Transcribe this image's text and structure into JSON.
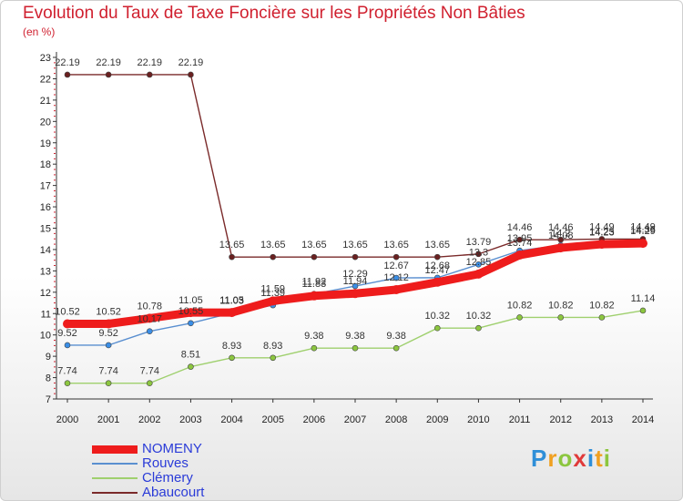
{
  "title": "Evolution du Taux de Taxe Foncière sur les Propriétés Non Bâties",
  "unit_label": "(en %)",
  "brand": {
    "letters": [
      "P",
      "r",
      "o",
      "x",
      "i",
      "t",
      "i"
    ],
    "colors": [
      "#2f8fd8",
      "#f0a020",
      "#8cc63f",
      "#e03a3a",
      "#2f8fd8",
      "#f0a020",
      "#8cc63f"
    ]
  },
  "chart_data": {
    "type": "line",
    "title": "Evolution du Taux de Taxe Foncière sur les Propriétés Non Bâties",
    "ylabel": "(en %)",
    "xlabel": "",
    "x": [
      "2000",
      "2001",
      "2002",
      "2003",
      "2004",
      "2005",
      "2006",
      "2007",
      "2008",
      "2009",
      "2010",
      "2011",
      "2012",
      "2013",
      "2014"
    ],
    "y_ticks": [
      "7",
      "8",
      "9",
      "10",
      "11",
      "12",
      "13",
      "14",
      "15",
      "16",
      "17",
      "18",
      "19",
      "20",
      "21",
      "22",
      "23"
    ],
    "ylim": [
      7,
      23
    ],
    "grid": false,
    "legend_position": "bottom-left",
    "series": [
      {
        "name": "NOMENY",
        "color": "#ee1c1c",
        "marker": "#ee1c1c",
        "values": [
          10.52,
          10.52,
          10.78,
          11.05,
          11.05,
          11.59,
          11.83,
          11.94,
          12.12,
          12.47,
          12.85,
          13.74,
          14.08,
          14.25,
          14.29
        ]
      },
      {
        "name": "Rouves",
        "color": "#5a8fd0",
        "marker": "#3a8ee6",
        "values": [
          9.52,
          9.52,
          10.17,
          10.55,
          11.03,
          11.39,
          11.92,
          12.29,
          12.67,
          12.68,
          13.3,
          13.95,
          14.2,
          14.23,
          14.36
        ]
      },
      {
        "name": "Clémery",
        "color": "#9fd06e",
        "marker": "#8cc63f",
        "values": [
          7.74,
          7.74,
          7.74,
          8.51,
          8.93,
          8.93,
          9.38,
          9.38,
          9.38,
          10.32,
          10.32,
          10.82,
          10.82,
          10.82,
          11.14
        ]
      },
      {
        "name": "Abaucourt",
        "color": "#7a2a2a",
        "marker": "#6a2020",
        "values": [
          22.19,
          22.19,
          22.19,
          22.19,
          13.65,
          13.65,
          13.65,
          13.65,
          13.65,
          13.65,
          13.79,
          14.46,
          14.46,
          14.49,
          14.49
        ]
      }
    ]
  }
}
